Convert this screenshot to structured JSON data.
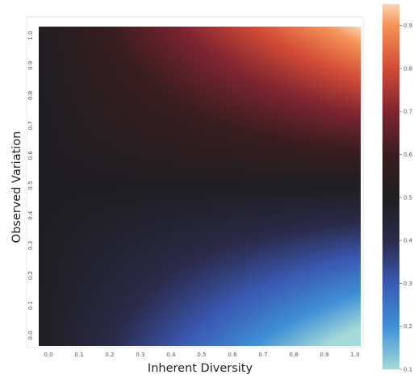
{
  "chart_data": {
    "type": "heatmap",
    "title": "",
    "xlabel": "Inherent Diversity",
    "ylabel": "Observed Variation",
    "x_ticks": [
      "0.0",
      "0.1",
      "0.2",
      "0.3",
      "0.4",
      "0.5",
      "0.6",
      "0.7",
      "0.8",
      "0.9",
      "1.0"
    ],
    "y_ticks": [
      "0.0",
      "0.1",
      "0.2",
      "0.3",
      "0.4",
      "0.5",
      "0.6",
      "0.7",
      "0.8",
      "0.9",
      "1.0"
    ],
    "xlim": [
      0,
      1
    ],
    "ylim": [
      0,
      1
    ],
    "grid": false,
    "colorbar": {
      "range": [
        0.1,
        0.95
      ],
      "ticks": [
        "0.1",
        "0.2",
        "0.3",
        "0.4",
        "0.5",
        "0.6",
        "0.7",
        "0.8",
        "0.9"
      ],
      "colormap": "icefire",
      "stops": [
        {
          "value": 0.1,
          "color": "#a3d9d8"
        },
        {
          "value": 0.2,
          "color": "#3f8fd6"
        },
        {
          "value": 0.3,
          "color": "#3a5ab3"
        },
        {
          "value": 0.4,
          "color": "#2b2a4a"
        },
        {
          "value": 0.5,
          "color": "#1f1e21"
        },
        {
          "value": 0.6,
          "color": "#3a1d20"
        },
        {
          "value": 0.7,
          "color": "#7f2531"
        },
        {
          "value": 0.8,
          "color": "#d24b36"
        },
        {
          "value": 0.9,
          "color": "#f59257"
        },
        {
          "value": 0.95,
          "color": "#fbd5b3"
        }
      ]
    },
    "function": "value = 0.5 + 0.45 * x * (2*y - 1)",
    "corner_values": {
      "x0_y0": 0.5,
      "x0_y1": 0.5,
      "x1_y0": 0.05,
      "x1_y1": 0.95,
      "x1_y05": 0.5
    }
  }
}
